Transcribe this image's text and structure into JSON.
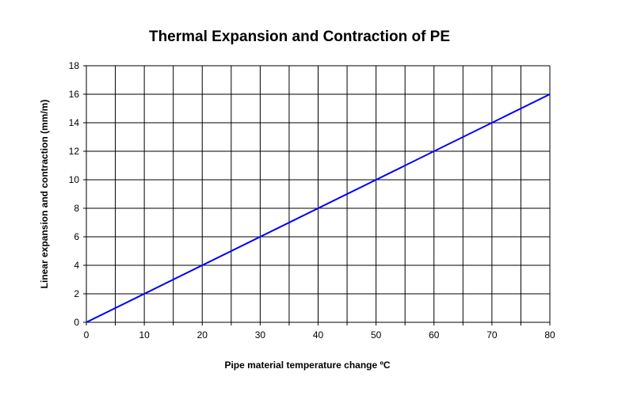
{
  "chart_data": {
    "type": "line",
    "title": "Thermal Expansion and Contraction of PE",
    "xlabel": "Pipe material temperature change ºC",
    "ylabel": "Linear expansion and contraction (mm/m)",
    "xlim": [
      0,
      80
    ],
    "ylim": [
      0,
      18
    ],
    "x_ticks": [
      0,
      10,
      20,
      30,
      40,
      50,
      60,
      70,
      80
    ],
    "y_ticks": [
      0,
      2,
      4,
      6,
      8,
      10,
      12,
      14,
      16,
      18
    ],
    "x_grid_step": 5,
    "y_grid_step": 2,
    "grid": true,
    "legend": "none",
    "series": [
      {
        "x": [
          0,
          80
        ],
        "y": [
          0,
          16
        ],
        "color": "#0000ff"
      }
    ]
  }
}
